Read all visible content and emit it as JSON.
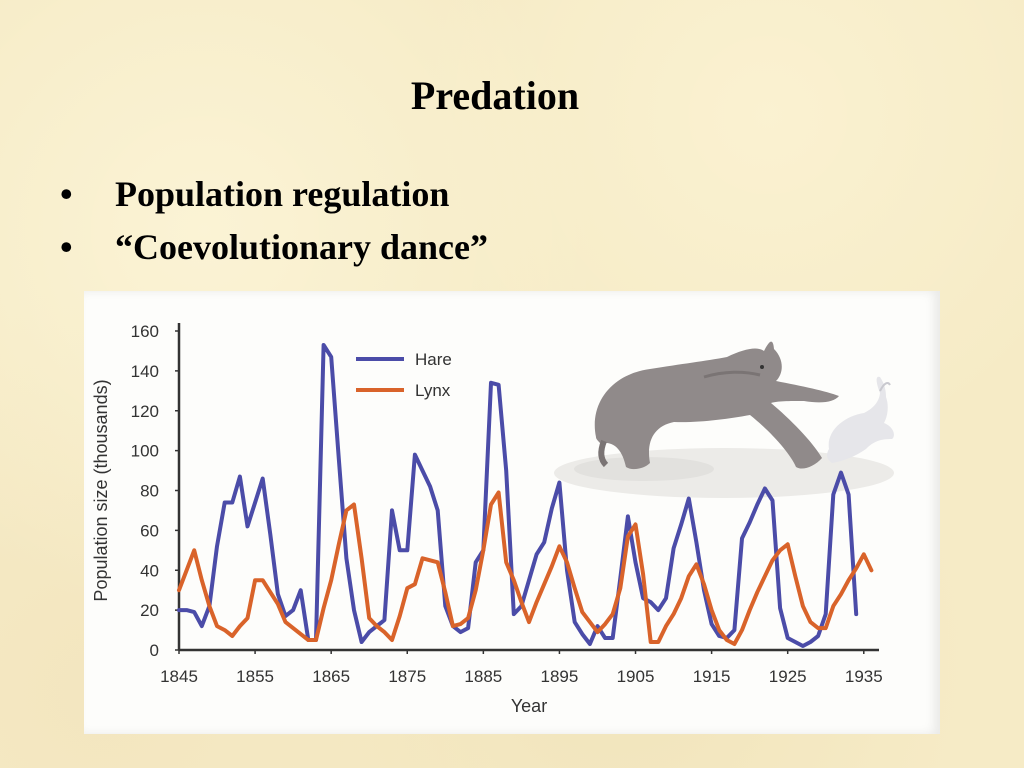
{
  "slide": {
    "title": "Predation",
    "bullets": [
      {
        "marker": "•",
        "text": "Population regulation"
      },
      {
        "marker": "•",
        "text": "“Coevolutionary dance”"
      }
    ]
  },
  "illustration": {
    "subject": "lynx chasing snowshoe hare in snow"
  },
  "colors": {
    "hare": "#4b4ca8",
    "lynx": "#d9632a",
    "background": "#f6ebc6"
  },
  "chart_data": {
    "type": "line",
    "xlabel": "Year",
    "ylabel": "Population size (thousands)",
    "xlim": [
      1845,
      1937
    ],
    "ylim": [
      0,
      160
    ],
    "x_ticks": [
      1845,
      1855,
      1865,
      1875,
      1885,
      1895,
      1905,
      1915,
      1925,
      1935
    ],
    "y_ticks": [
      0,
      20,
      40,
      60,
      80,
      100,
      120,
      140,
      160
    ],
    "grid": false,
    "legend_position": "top-left",
    "series": [
      {
        "name": "Hare",
        "color": "#4b4ca8",
        "points": [
          [
            1845,
            20
          ],
          [
            1846,
            20
          ],
          [
            1847,
            19
          ],
          [
            1848,
            12
          ],
          [
            1849,
            22
          ],
          [
            1850,
            52
          ],
          [
            1851,
            74
          ],
          [
            1852,
            74
          ],
          [
            1853,
            87
          ],
          [
            1854,
            62
          ],
          [
            1855,
            74
          ],
          [
            1856,
            86
          ],
          [
            1857,
            58
          ],
          [
            1858,
            28
          ],
          [
            1859,
            17
          ],
          [
            1860,
            20
          ],
          [
            1861,
            30
          ],
          [
            1862,
            5
          ],
          [
            1863,
            5
          ],
          [
            1864,
            153
          ],
          [
            1865,
            147
          ],
          [
            1866,
            96
          ],
          [
            1867,
            46
          ],
          [
            1868,
            20
          ],
          [
            1869,
            4
          ],
          [
            1870,
            9
          ],
          [
            1871,
            12
          ],
          [
            1872,
            15
          ],
          [
            1873,
            70
          ],
          [
            1874,
            50
          ],
          [
            1875,
            50
          ],
          [
            1876,
            98
          ],
          [
            1877,
            90
          ],
          [
            1878,
            82
          ],
          [
            1879,
            70
          ],
          [
            1880,
            22
          ],
          [
            1881,
            12
          ],
          [
            1882,
            9
          ],
          [
            1883,
            11
          ],
          [
            1884,
            44
          ],
          [
            1885,
            50
          ],
          [
            1886,
            134
          ],
          [
            1887,
            133
          ],
          [
            1888,
            90
          ],
          [
            1889,
            18
          ],
          [
            1890,
            22
          ],
          [
            1891,
            35
          ],
          [
            1892,
            48
          ],
          [
            1893,
            54
          ],
          [
            1894,
            71
          ],
          [
            1895,
            84
          ],
          [
            1896,
            40
          ],
          [
            1897,
            14
          ],
          [
            1898,
            8
          ],
          [
            1899,
            3
          ],
          [
            1900,
            12
          ],
          [
            1901,
            6
          ],
          [
            1902,
            6
          ],
          [
            1903,
            36
          ],
          [
            1904,
            67
          ],
          [
            1905,
            44
          ],
          [
            1906,
            26
          ],
          [
            1907,
            24
          ],
          [
            1908,
            20
          ],
          [
            1909,
            26
          ],
          [
            1910,
            51
          ],
          [
            1911,
            63
          ],
          [
            1912,
            76
          ],
          [
            1913,
            54
          ],
          [
            1914,
            30
          ],
          [
            1915,
            13
          ],
          [
            1916,
            7
          ],
          [
            1917,
            6
          ],
          [
            1918,
            10
          ],
          [
            1919,
            56
          ],
          [
            1920,
            64
          ],
          [
            1921,
            73
          ],
          [
            1922,
            81
          ],
          [
            1923,
            75
          ],
          [
            1924,
            21
          ],
          [
            1925,
            6
          ],
          [
            1926,
            4
          ],
          [
            1927,
            2
          ],
          [
            1928,
            4
          ],
          [
            1929,
            7
          ],
          [
            1930,
            18
          ],
          [
            1931,
            78
          ],
          [
            1932,
            89
          ],
          [
            1933,
            78
          ],
          [
            1934,
            18
          ]
        ]
      },
      {
        "name": "Lynx",
        "color": "#d9632a",
        "points": [
          [
            1845,
            30
          ],
          [
            1846,
            40
          ],
          [
            1847,
            50
          ],
          [
            1848,
            35
          ],
          [
            1849,
            22
          ],
          [
            1850,
            12
          ],
          [
            1851,
            10
          ],
          [
            1852,
            7
          ],
          [
            1853,
            12
          ],
          [
            1854,
            16
          ],
          [
            1855,
            35
          ],
          [
            1856,
            35
          ],
          [
            1857,
            29
          ],
          [
            1858,
            23
          ],
          [
            1859,
            14
          ],
          [
            1860,
            11
          ],
          [
            1861,
            8
          ],
          [
            1862,
            5
          ],
          [
            1863,
            5
          ],
          [
            1864,
            21
          ],
          [
            1865,
            35
          ],
          [
            1866,
            53
          ],
          [
            1867,
            70
          ],
          [
            1868,
            73
          ],
          [
            1869,
            46
          ],
          [
            1870,
            16
          ],
          [
            1871,
            12
          ],
          [
            1872,
            9
          ],
          [
            1873,
            5
          ],
          [
            1874,
            17
          ],
          [
            1875,
            31
          ],
          [
            1876,
            33
          ],
          [
            1877,
            46
          ],
          [
            1878,
            45
          ],
          [
            1879,
            44
          ],
          [
            1880,
            29
          ],
          [
            1881,
            12
          ],
          [
            1882,
            13
          ],
          [
            1883,
            16
          ],
          [
            1884,
            30
          ],
          [
            1885,
            50
          ],
          [
            1886,
            73
          ],
          [
            1887,
            79
          ],
          [
            1888,
            44
          ],
          [
            1889,
            35
          ],
          [
            1890,
            24
          ],
          [
            1891,
            14
          ],
          [
            1892,
            24
          ],
          [
            1893,
            33
          ],
          [
            1894,
            42
          ],
          [
            1895,
            52
          ],
          [
            1896,
            44
          ],
          [
            1897,
            31
          ],
          [
            1898,
            19
          ],
          [
            1899,
            14
          ],
          [
            1900,
            9
          ],
          [
            1901,
            13
          ],
          [
            1902,
            18
          ],
          [
            1903,
            31
          ],
          [
            1904,
            57
          ],
          [
            1905,
            63
          ],
          [
            1906,
            38
          ],
          [
            1907,
            4
          ],
          [
            1908,
            4
          ],
          [
            1909,
            12
          ],
          [
            1910,
            18
          ],
          [
            1911,
            26
          ],
          [
            1912,
            37
          ],
          [
            1913,
            43
          ],
          [
            1914,
            33
          ],
          [
            1915,
            20
          ],
          [
            1916,
            10
          ],
          [
            1917,
            5
          ],
          [
            1918,
            3
          ],
          [
            1919,
            10
          ],
          [
            1920,
            20
          ],
          [
            1921,
            29
          ],
          [
            1922,
            37
          ],
          [
            1923,
            45
          ],
          [
            1924,
            50
          ],
          [
            1925,
            53
          ],
          [
            1926,
            37
          ],
          [
            1927,
            22
          ],
          [
            1928,
            14
          ],
          [
            1929,
            11
          ],
          [
            1930,
            11
          ],
          [
            1931,
            22
          ],
          [
            1932,
            28
          ],
          [
            1933,
            35
          ],
          [
            1934,
            41
          ],
          [
            1935,
            48
          ],
          [
            1936,
            40
          ]
        ]
      }
    ]
  }
}
